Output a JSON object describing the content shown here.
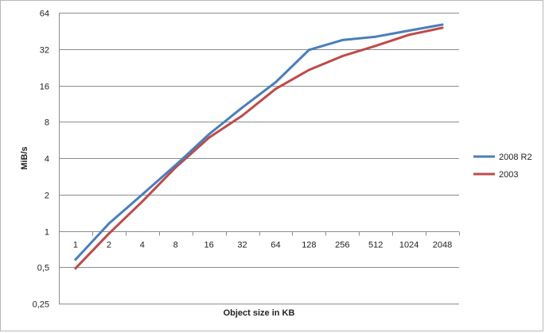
{
  "chart_data": {
    "type": "line",
    "title": "",
    "xlabel": "Object size in KB",
    "ylabel": "MiB/s",
    "x_scale": "category",
    "y_scale": "log2",
    "categories": [
      "1",
      "2",
      "4",
      "8",
      "16",
      "32",
      "64",
      "128",
      "256",
      "512",
      "1024",
      "2048"
    ],
    "y_ticks": [
      0.25,
      0.5,
      1,
      2,
      4,
      8,
      16,
      32,
      64
    ],
    "y_tick_labels": [
      "0,25",
      "0,5",
      "1",
      "2",
      "4",
      "8",
      "16",
      "32",
      "64"
    ],
    "ylim": [
      0.25,
      64
    ],
    "grid": true,
    "legend_position": "right",
    "series": [
      {
        "name": "2008 R2",
        "color": "#4a7ebb",
        "values": [
          0.58,
          1.15,
          2.0,
          3.5,
          6.3,
          10.5,
          17.0,
          31.5,
          38.0,
          40.5,
          45.5,
          51.0
        ]
      },
      {
        "name": "2003",
        "color": "#be4b48",
        "values": [
          0.49,
          0.95,
          1.75,
          3.35,
          5.9,
          9.0,
          15.0,
          21.5,
          28.0,
          34.0,
          42.0,
          48.0
        ]
      }
    ]
  }
}
